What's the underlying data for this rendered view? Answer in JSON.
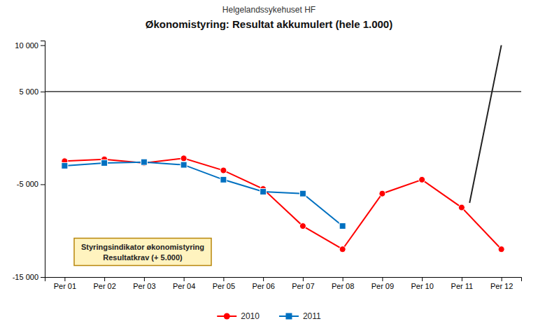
{
  "chart_data": {
    "type": "line",
    "subtitle": "Helgelandssykehuset HF",
    "title": "Økonomistyring: Resultat akkumulert (hele 1.000)",
    "x": [
      1,
      2,
      3,
      4,
      5,
      6,
      7,
      8,
      9,
      10,
      11,
      12
    ],
    "xlim": [
      0.5,
      12.5
    ],
    "xticks": [
      {
        "value": 1,
        "label": "Per 01"
      },
      {
        "value": 2,
        "label": "Per 02"
      },
      {
        "value": 3,
        "label": "Per 03"
      },
      {
        "value": 4,
        "label": "Per 04"
      },
      {
        "value": 5,
        "label": "Per 05"
      },
      {
        "value": 6,
        "label": "Per 06"
      },
      {
        "value": 7,
        "label": "Per 07"
      },
      {
        "value": 8,
        "label": "Per 08"
      },
      {
        "value": 9,
        "label": "Per 09"
      },
      {
        "value": 10,
        "label": "Per 10"
      },
      {
        "value": 11,
        "label": "Per 11"
      },
      {
        "value": 12,
        "label": "Per 12"
      }
    ],
    "ylim": [
      -15000,
      10500
    ],
    "yticks": [
      {
        "value": -15000,
        "label": "-15 000"
      },
      {
        "value": -5000,
        "label": "-5 000"
      },
      {
        "value": 5000,
        "label": "5 000"
      },
      {
        "value": 10000,
        "label": "10 000"
      }
    ],
    "series": [
      {
        "name": "2010",
        "color": "#FF0000",
        "marker": "circle",
        "values": [
          -2500,
          -2300,
          -2700,
          -2200,
          -3500,
          -5500,
          -9500,
          -12000,
          -6000,
          -4500,
          -7500,
          -12000
        ]
      },
      {
        "name": "2011",
        "color": "#0070C0",
        "marker": "square",
        "values": [
          -3000,
          -2700,
          -2600,
          -2900,
          -4500,
          -5800,
          -6000,
          -9500,
          null,
          null,
          null,
          null
        ]
      },
      {
        "x": [
          11.2,
          12
        ],
        "values": [
          -7000,
          10000
        ],
        "marker": "none"
      }
    ],
    "hline": 5000,
    "annotation": "Styringsindikator økonomistyring\nResultatkrav (+ 5.000)",
    "legend": "bottom",
    "grid": false
  }
}
